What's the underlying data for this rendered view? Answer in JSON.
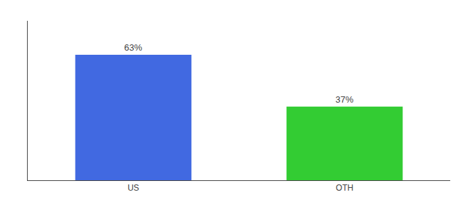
{
  "chart_data": {
    "type": "bar",
    "categories": [
      "US",
      "OTH"
    ],
    "values": [
      63,
      37
    ],
    "value_labels": [
      "63%",
      "37%"
    ],
    "colors": [
      "#4169e1",
      "#33cc33"
    ],
    "ylim": [
      0,
      80
    ],
    "yticks": [],
    "grid": false,
    "data_labels": true,
    "tick_labels": "x"
  }
}
